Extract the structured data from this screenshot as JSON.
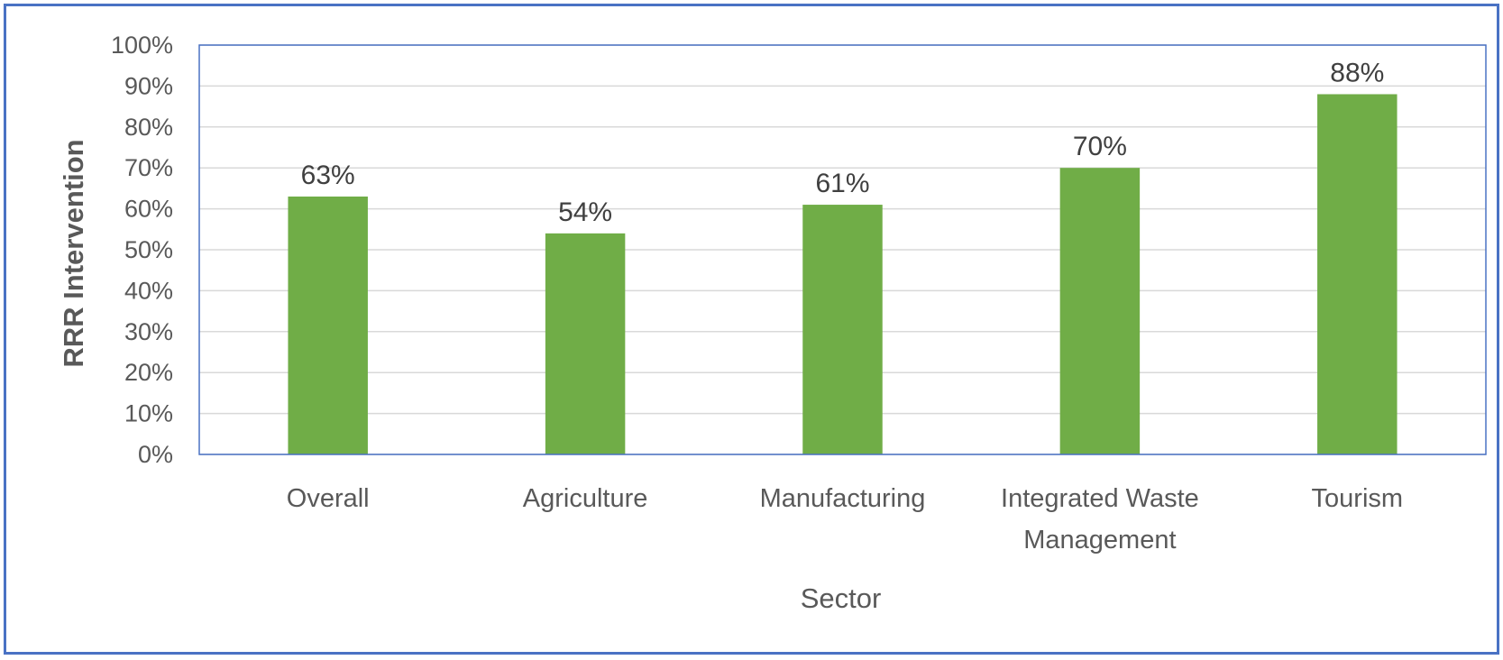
{
  "chart_data": {
    "type": "bar",
    "categories": [
      [
        "Overall"
      ],
      [
        "Agriculture"
      ],
      [
        "Manufacturing"
      ],
      [
        "Integrated Waste",
        "Management"
      ],
      [
        "Tourism"
      ]
    ],
    "values": [
      63,
      54,
      61,
      70,
      88
    ],
    "data_labels": [
      "63%",
      "54%",
      "61%",
      "70%",
      "88%"
    ],
    "title": "",
    "xlabel": "Sector",
    "ylabel": "RRR Intervention",
    "ylim": [
      0,
      100
    ],
    "yticks": [
      0,
      10,
      20,
      30,
      40,
      50,
      60,
      70,
      80,
      90,
      100
    ],
    "ytick_labels": [
      "0%",
      "10%",
      "20%",
      "30%",
      "40%",
      "50%",
      "60%",
      "70%",
      "80%",
      "90%",
      "100%"
    ],
    "grid": true,
    "legend": "none",
    "bar_color": "#70ad47",
    "grid_color": "#d9d9d9",
    "plot_border_color": "#4a72c4",
    "frame_border_color": "#4a72c4"
  }
}
